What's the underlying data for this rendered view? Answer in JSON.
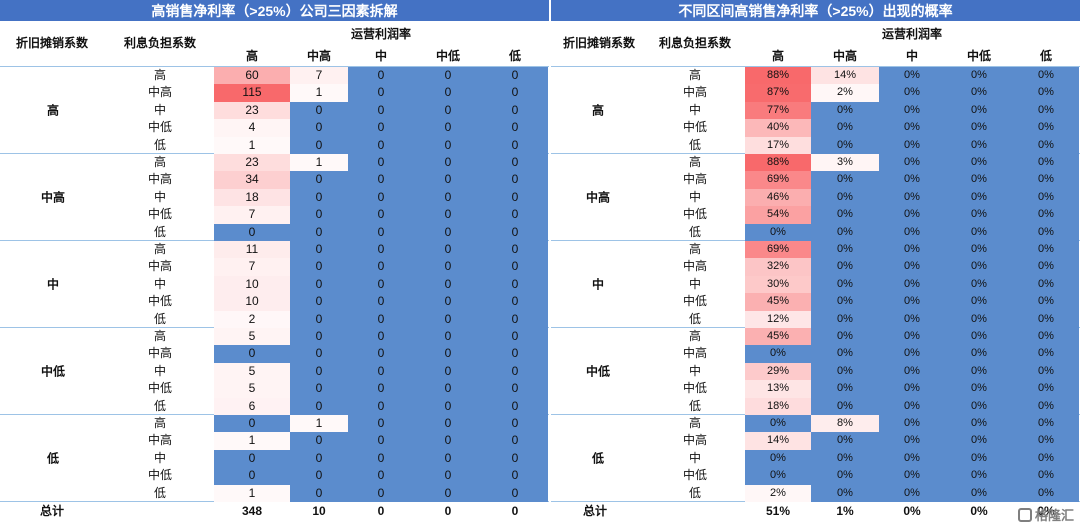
{
  "left": {
    "title": "高销售净利率（>25%）公司三因素拆解",
    "headers": {
      "dep": "折旧摊销系数",
      "int": "利息负担系数",
      "op": "运营利润率",
      "cols": [
        "高",
        "中高",
        "中",
        "中低",
        "低"
      ]
    },
    "groups": [
      {
        "label": "高",
        "rows": [
          {
            "label": "高",
            "values": [
              "60",
              "7",
              "0",
              "0",
              "0"
            ]
          },
          {
            "label": "中高",
            "values": [
              "115",
              "1",
              "0",
              "0",
              "0"
            ]
          },
          {
            "label": "中",
            "values": [
              "23",
              "0",
              "0",
              "0",
              "0"
            ]
          },
          {
            "label": "中低",
            "values": [
              "4",
              "0",
              "0",
              "0",
              "0"
            ]
          },
          {
            "label": "低",
            "values": [
              "1",
              "0",
              "0",
              "0",
              "0"
            ]
          }
        ]
      },
      {
        "label": "中高",
        "rows": [
          {
            "label": "高",
            "values": [
              "23",
              "1",
              "0",
              "0",
              "0"
            ]
          },
          {
            "label": "中高",
            "values": [
              "34",
              "0",
              "0",
              "0",
              "0"
            ]
          },
          {
            "label": "中",
            "values": [
              "18",
              "0",
              "0",
              "0",
              "0"
            ]
          },
          {
            "label": "中低",
            "values": [
              "7",
              "0",
              "0",
              "0",
              "0"
            ]
          },
          {
            "label": "低",
            "values": [
              "0",
              "0",
              "0",
              "0",
              "0"
            ]
          }
        ]
      },
      {
        "label": "中",
        "rows": [
          {
            "label": "高",
            "values": [
              "11",
              "0",
              "0",
              "0",
              "0"
            ]
          },
          {
            "label": "中高",
            "values": [
              "7",
              "0",
              "0",
              "0",
              "0"
            ]
          },
          {
            "label": "中",
            "values": [
              "10",
              "0",
              "0",
              "0",
              "0"
            ]
          },
          {
            "label": "中低",
            "values": [
              "10",
              "0",
              "0",
              "0",
              "0"
            ]
          },
          {
            "label": "低",
            "values": [
              "2",
              "0",
              "0",
              "0",
              "0"
            ]
          }
        ]
      },
      {
        "label": "中低",
        "rows": [
          {
            "label": "高",
            "values": [
              "5",
              "0",
              "0",
              "0",
              "0"
            ]
          },
          {
            "label": "中高",
            "values": [
              "0",
              "0",
              "0",
              "0",
              "0"
            ]
          },
          {
            "label": "中",
            "values": [
              "5",
              "0",
              "0",
              "0",
              "0"
            ]
          },
          {
            "label": "中低",
            "values": [
              "5",
              "0",
              "0",
              "0",
              "0"
            ]
          },
          {
            "label": "低",
            "values": [
              "6",
              "0",
              "0",
              "0",
              "0"
            ]
          }
        ]
      },
      {
        "label": "低",
        "rows": [
          {
            "label": "高",
            "values": [
              "0",
              "1",
              "0",
              "0",
              "0"
            ]
          },
          {
            "label": "中高",
            "values": [
              "1",
              "0",
              "0",
              "0",
              "0"
            ]
          },
          {
            "label": "中",
            "values": [
              "0",
              "0",
              "0",
              "0",
              "0"
            ]
          },
          {
            "label": "中低",
            "values": [
              "0",
              "0",
              "0",
              "0",
              "0"
            ]
          },
          {
            "label": "低",
            "values": [
              "1",
              "0",
              "0",
              "0",
              "0"
            ]
          }
        ]
      }
    ],
    "total": {
      "label": "总计",
      "values": [
        "348",
        "10",
        "0",
        "0",
        "0"
      ]
    }
  },
  "right": {
    "title": "不同区间高销售净利率（>25%）出现的概率",
    "headers": {
      "dep": "折旧摊销系数",
      "int": "利息负担系数",
      "op": "运营利润率",
      "cols": [
        "高",
        "中高",
        "中",
        "中低",
        "低"
      ]
    },
    "groups": [
      {
        "label": "高",
        "rows": [
          {
            "label": "高",
            "values": [
              "88%",
              "14%",
              "0%",
              "0%",
              "0%"
            ]
          },
          {
            "label": "中高",
            "values": [
              "87%",
              "2%",
              "0%",
              "0%",
              "0%"
            ]
          },
          {
            "label": "中",
            "values": [
              "77%",
              "0%",
              "0%",
              "0%",
              "0%"
            ]
          },
          {
            "label": "中低",
            "values": [
              "40%",
              "0%",
              "0%",
              "0%",
              "0%"
            ]
          },
          {
            "label": "低",
            "values": [
              "17%",
              "0%",
              "0%",
              "0%",
              "0%"
            ]
          }
        ]
      },
      {
        "label": "中高",
        "rows": [
          {
            "label": "高",
            "values": [
              "88%",
              "3%",
              "0%",
              "0%",
              "0%"
            ]
          },
          {
            "label": "中高",
            "values": [
              "69%",
              "0%",
              "0%",
              "0%",
              "0%"
            ]
          },
          {
            "label": "中",
            "values": [
              "46%",
              "0%",
              "0%",
              "0%",
              "0%"
            ]
          },
          {
            "label": "中低",
            "values": [
              "54%",
              "0%",
              "0%",
              "0%",
              "0%"
            ]
          },
          {
            "label": "低",
            "values": [
              "0%",
              "0%",
              "0%",
              "0%",
              "0%"
            ]
          }
        ]
      },
      {
        "label": "中",
        "rows": [
          {
            "label": "高",
            "values": [
              "69%",
              "0%",
              "0%",
              "0%",
              "0%"
            ]
          },
          {
            "label": "中高",
            "values": [
              "32%",
              "0%",
              "0%",
              "0%",
              "0%"
            ]
          },
          {
            "label": "中",
            "values": [
              "30%",
              "0%",
              "0%",
              "0%",
              "0%"
            ]
          },
          {
            "label": "中低",
            "values": [
              "45%",
              "0%",
              "0%",
              "0%",
              "0%"
            ]
          },
          {
            "label": "低",
            "values": [
              "12%",
              "0%",
              "0%",
              "0%",
              "0%"
            ]
          }
        ]
      },
      {
        "label": "中低",
        "rows": [
          {
            "label": "高",
            "values": [
              "45%",
              "0%",
              "0%",
              "0%",
              "0%"
            ]
          },
          {
            "label": "中高",
            "values": [
              "0%",
              "0%",
              "0%",
              "0%",
              "0%"
            ]
          },
          {
            "label": "中",
            "values": [
              "29%",
              "0%",
              "0%",
              "0%",
              "0%"
            ]
          },
          {
            "label": "中低",
            "values": [
              "13%",
              "0%",
              "0%",
              "0%",
              "0%"
            ]
          },
          {
            "label": "低",
            "values": [
              "18%",
              "0%",
              "0%",
              "0%",
              "0%"
            ]
          }
        ]
      },
      {
        "label": "低",
        "rows": [
          {
            "label": "高",
            "values": [
              "0%",
              "8%",
              "0%",
              "0%",
              "0%"
            ]
          },
          {
            "label": "中高",
            "values": [
              "14%",
              "0%",
              "0%",
              "0%",
              "0%"
            ]
          },
          {
            "label": "中",
            "values": [
              "0%",
              "0%",
              "0%",
              "0%",
              "0%"
            ]
          },
          {
            "label": "中低",
            "values": [
              "0%",
              "0%",
              "0%",
              "0%",
              "0%"
            ]
          },
          {
            "label": "低",
            "values": [
              "2%",
              "0%",
              "0%",
              "0%",
              "0%"
            ]
          }
        ]
      }
    ],
    "total": {
      "label": "总计",
      "values": [
        "51%",
        "1%",
        "0%",
        "0%",
        "0%"
      ]
    }
  },
  "colors": {
    "title_bg": "#4472c4",
    "zero_bg": "#5b8ccd",
    "heat_max": "#f8696b",
    "heat_min": "#fffafa"
  },
  "watermark": "格隆汇"
}
